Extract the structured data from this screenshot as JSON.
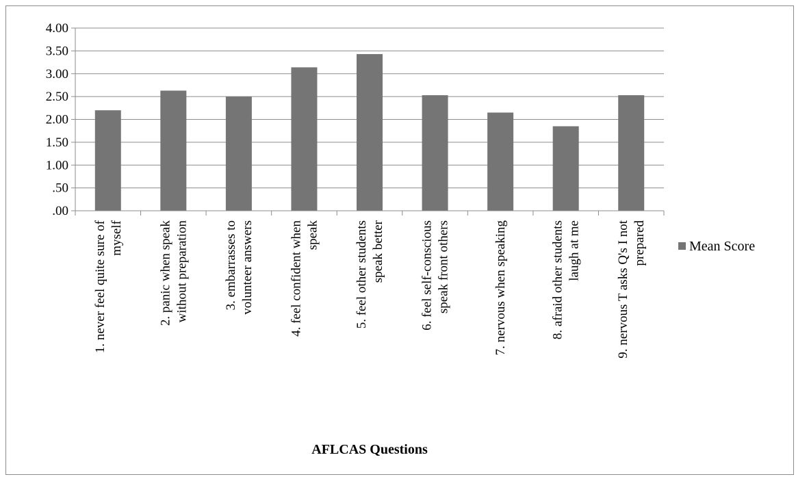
{
  "chart_data": {
    "type": "bar",
    "title": "",
    "xlabel": "AFLCAS Questions",
    "ylabel": "",
    "ylim": [
      0,
      4
    ],
    "yticks": [
      ".00",
      ".50",
      "1.00",
      "1.50",
      "2.00",
      "2.50",
      "3.00",
      "3.50",
      "4.00"
    ],
    "grid": true,
    "legend_position": "right",
    "categories": [
      [
        "1. never feel quite sure of",
        "myself"
      ],
      [
        "2. panic when speak",
        "without preparation"
      ],
      [
        "3. embarrasses to",
        "volunteer answers"
      ],
      [
        "4. feel confident when",
        "speak"
      ],
      [
        "5. feel other students",
        "speak better"
      ],
      [
        "6. feel self-conscious",
        "speak front others"
      ],
      [
        "7. nervous when speaking"
      ],
      [
        "8. afraid other students",
        "laugh at me"
      ],
      [
        "9. nervous T asks Q's I not",
        "prepared"
      ]
    ],
    "series": [
      {
        "name": "Mean Score",
        "color": "#757575",
        "values": [
          2.2,
          2.63,
          2.5,
          3.14,
          3.43,
          2.53,
          2.15,
          1.85,
          2.53
        ]
      }
    ]
  }
}
